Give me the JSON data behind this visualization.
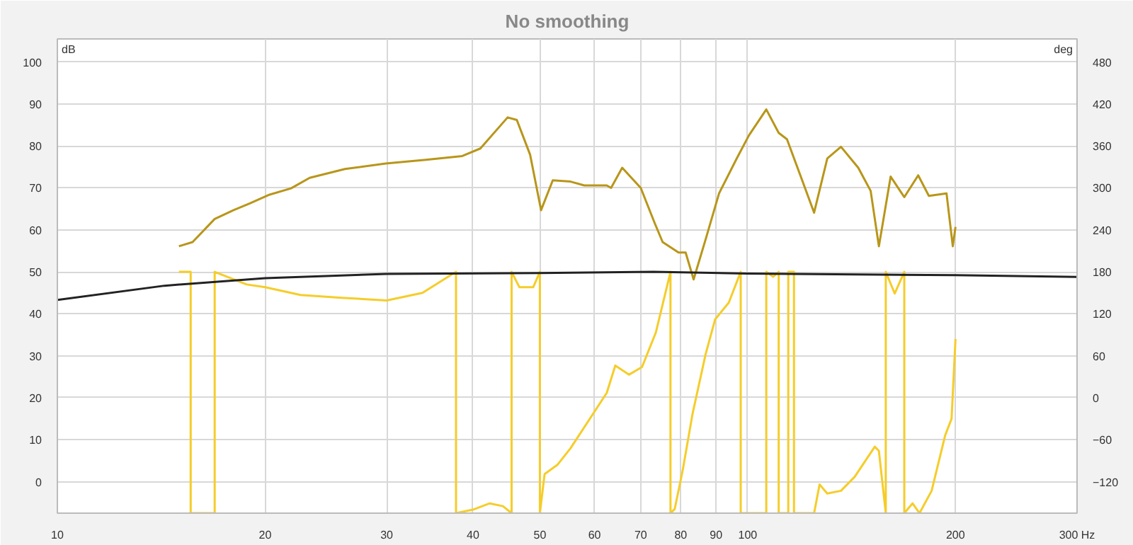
{
  "chart_data": {
    "type": "line",
    "title": "No smoothing",
    "ylabel": "dB",
    "y2label": "deg",
    "xlim": [
      10,
      300
    ],
    "ylim": [
      -7.5,
      105.5
    ],
    "y2lim": [
      -165,
      513
    ],
    "log": "x",
    "grid": true,
    "marker": "none",
    "line_style": "solid",
    "xticks": [
      10,
      20,
      30,
      40,
      50,
      60,
      70,
      80,
      90,
      100,
      200,
      {
        "value": 300,
        "label": "300 Hz"
      }
    ],
    "yticks": [
      0,
      10,
      20,
      30,
      40,
      50,
      60,
      70,
      80,
      90,
      100
    ],
    "y2ticks": [
      -120,
      -60,
      0,
      60,
      120,
      180,
      240,
      300,
      360,
      420,
      480
    ],
    "series": [
      {
        "color": "#b8961a",
        "x": [
          15.0,
          15.7,
          16.9,
          18.0,
          19.0,
          20.3,
          21.8,
          23.2,
          26.1,
          29.9,
          34.2,
          38.6,
          41.0,
          44.9,
          46.3,
          48.4,
          50.2,
          52.2,
          55.4,
          58.0,
          62.5,
          63.4,
          65.8,
          70.0,
          73.3,
          75.3,
          79.4,
          81.3,
          83.5,
          86.9,
          90.9,
          96.4,
          100.4,
          106.4,
          110.9,
          114.0,
          119.2,
          124.8,
          130.4,
          136.5,
          144.6,
          150.7,
          154.9,
          161.1,
          168.6,
          176.6,
          183.0,
          194.1,
          198.2,
          200.0
        ],
        "values": [
          56.1,
          57.1,
          62.6,
          64.7,
          66.3,
          68.4,
          69.9,
          72.4,
          74.5,
          75.8,
          76.7,
          77.6,
          79.4,
          86.8,
          86.2,
          77.9,
          64.7,
          71.8,
          71.5,
          70.6,
          70.6,
          70.0,
          74.8,
          70.0,
          61.7,
          57.1,
          54.6,
          54.6,
          48.2,
          57.7,
          68.7,
          77.0,
          82.5,
          88.7,
          83.1,
          81.6,
          73.0,
          64.1,
          77.0,
          79.8,
          74.8,
          69.3,
          56.1,
          72.7,
          67.8,
          73.0,
          68.1,
          68.7,
          56.1,
          60.7
        ]
      },
      {
        "color": "#f5cd2a",
        "axis": "y2",
        "x": [
          15.0,
          15.6,
          15.6,
          16.9,
          16.9,
          18.8,
          20,
          22.5,
          25.8,
          30,
          33.8,
          37.8,
          37.8,
          40,
          42.3,
          44.2,
          45.5,
          45.5,
          46.7,
          48.9,
          50,
          50,
          50.8,
          53.0,
          55.4,
          62.5,
          64.3,
          67.3,
          70.3,
          73.6,
          77.3,
          77.3,
          78.4,
          80.5,
          83.2,
          86.9,
          89.7,
          93.9,
          97.7,
          97.7,
          106.4,
          106.4,
          108.9,
          110.9,
          110.9,
          114.5,
          114.5,
          116.7,
          116.7,
          124.8,
          127.1,
          130.4,
          136.5,
          142.9,
          152.8,
          154.9,
          158.5,
          158.5,
          163.3,
          168.6,
          168.6,
          173.3,
          177.4,
          184.7,
          193.2,
          197.4,
          200
        ],
        "values": [
          180,
          180,
          -165,
          -165,
          180,
          162,
          158,
          147,
          143,
          139,
          150,
          180,
          -165,
          -160,
          -151,
          -155,
          -165,
          180,
          158,
          158,
          180,
          -165,
          -109,
          -96,
          -72,
          7,
          46,
          33,
          44,
          93,
          180,
          -165,
          -159,
          -104,
          -23,
          62,
          112,
          136,
          180,
          -165,
          -165,
          180,
          173,
          180,
          -165,
          -165,
          180,
          180,
          -165,
          -165,
          -124,
          -137,
          -133,
          -113,
          -70,
          -76,
          -165,
          180,
          149,
          180,
          -165,
          -151,
          -165,
          -133,
          -54,
          -30,
          84
        ]
      },
      {
        "color": "#222222",
        "x": [
          10,
          14.3,
          20,
          30,
          50,
          73,
          100,
          200,
          300
        ],
        "values": [
          43.3,
          46.7,
          48.5,
          49.5,
          49.7,
          50.0,
          49.6,
          49.2,
          48.8
        ]
      }
    ]
  }
}
